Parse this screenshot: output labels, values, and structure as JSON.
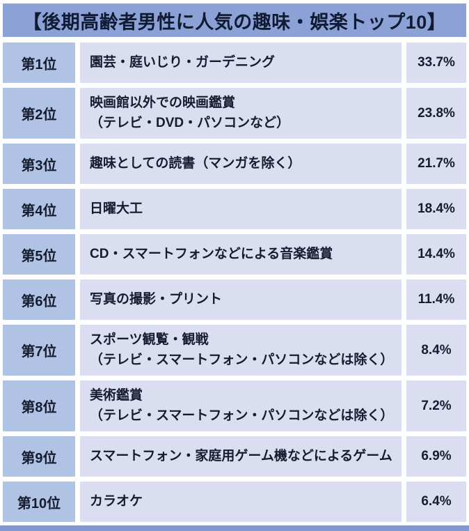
{
  "title": "【後期高齢者男性に人気の趣味・娯楽トップ10】",
  "colors": {
    "header_blue": "#8ca2d6",
    "rank_cell_blue": "#b0c3e4",
    "item_cell_lavender": "#dadef0",
    "text_navy": "#161c30",
    "bottom_strip_blue": "#8299cc"
  },
  "table": {
    "rows": [
      {
        "rank": "第1位",
        "hobby": "園芸・庭いじり・ガーデニング",
        "note": "",
        "percent": "33.7%"
      },
      {
        "rank": "第2位",
        "hobby": "映画館以外での映画鑑賞",
        "note": "（テレビ・DVD・パソコンなど）",
        "percent": "23.8%"
      },
      {
        "rank": "第3位",
        "hobby": "趣味としての読書（マンガを除く）",
        "note": "",
        "percent": "21.7%"
      },
      {
        "rank": "第4位",
        "hobby": "日曜大工",
        "note": "",
        "percent": "18.4%"
      },
      {
        "rank": "第5位",
        "hobby": "CD・スマートフォンなどによる音楽鑑賞",
        "note": "",
        "percent": "14.4%"
      },
      {
        "rank": "第6位",
        "hobby": "写真の撮影・プリント",
        "note": "",
        "percent": "11.4%"
      },
      {
        "rank": "第7位",
        "hobby": "スポーツ観覧・観戦",
        "note": "（テレビ・スマートフォン・パソコンなどは除く）",
        "percent": "8.4%"
      },
      {
        "rank": "第8位",
        "hobby": "美術鑑賞",
        "note": "（テレビ・スマートフォン・パソコンなどは除く）",
        "percent": "7.2%"
      },
      {
        "rank": "第9位",
        "hobby": "スマートフォン・家庭用ゲーム機などによるゲーム",
        "note": "",
        "percent": "6.9%"
      },
      {
        "rank": "第10位",
        "hobby": "カラオケ",
        "note": "",
        "percent": "6.4%"
      }
    ]
  },
  "chart_data": {
    "type": "table",
    "title": "【後期高齢者男性に人気の趣味・娯楽トップ10】",
    "ranks": [
      "第1位",
      "第2位",
      "第3位",
      "第4位",
      "第5位",
      "第6位",
      "第7位",
      "第8位",
      "第9位",
      "第10位"
    ],
    "categories": [
      "園芸・庭いじり・ガーデニング",
      "映画館以外での映画鑑賞（テレビ・DVD・パソコンなど）",
      "趣味としての読書（マンガを除く）",
      "日曜大工",
      "CD・スマートフォンなどによる音楽鑑賞",
      "写真の撮影・プリント",
      "スポーツ観覧・観戦（テレビ・スマートフォン・パソコンなどは除く）",
      "美術鑑賞（テレビ・スマートフォン・パソコンなどは除く）",
      "スマートフォン・家庭用ゲーム機などによるゲーム",
      "カラオケ"
    ],
    "values": [
      33.7,
      23.8,
      21.7,
      18.4,
      14.4,
      11.4,
      8.4,
      7.2,
      6.9,
      6.4
    ],
    "unit": "%"
  }
}
